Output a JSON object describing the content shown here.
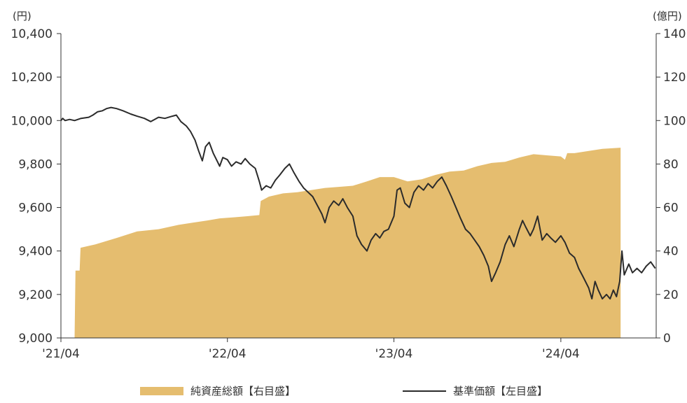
{
  "chart_data": {
    "type": "area",
    "title": "",
    "left_axis": {
      "unit_label": "(円)",
      "range": [
        9000,
        10400
      ],
      "tick_values": [
        9000,
        9200,
        9400,
        9600,
        9800,
        10000,
        10200,
        10400
      ],
      "tick_labels": [
        "9,000",
        "9,200",
        "9,400",
        "9,600",
        "9,800",
        "10,000",
        "10,200",
        "10,400"
      ]
    },
    "right_axis": {
      "unit_label": "(億円)",
      "range": [
        0,
        140
      ],
      "tick_values": [
        0,
        20,
        40,
        60,
        80,
        100,
        120,
        140
      ],
      "tick_labels": [
        "0",
        "20",
        "40",
        "60",
        "80",
        "100",
        "120",
        "140"
      ]
    },
    "x_axis": {
      "range": [
        "2021-04",
        "2024-08"
      ],
      "ticks": [
        {
          "date": "2021-04",
          "label": "'21/04"
        },
        {
          "date": "2022-04",
          "label": "'22/04"
        },
        {
          "date": "2023-04",
          "label": "'23/04"
        },
        {
          "date": "2024-04",
          "label": "'24/04"
        }
      ]
    },
    "grid": false,
    "legend_position": "bottom",
    "colors": {
      "area": "#e5bd6f",
      "line": "#2b2b2b",
      "axis": "#333333"
    },
    "series": [
      {
        "name": "純資産総額【右目盛】",
        "type": "area",
        "axis": "right",
        "points": [
          [
            "2021-04-01",
            0
          ],
          [
            "2021-05-01",
            0
          ],
          [
            "2021-05-03",
            31
          ],
          [
            "2021-05-12",
            31
          ],
          [
            "2021-05-14",
            41.5
          ],
          [
            "2021-06-15",
            43
          ],
          [
            "2021-08-01",
            46
          ],
          [
            "2021-09-15",
            49
          ],
          [
            "2021-11-01",
            50
          ],
          [
            "2021-12-15",
            52
          ],
          [
            "2022-01-15",
            53
          ],
          [
            "2022-02-15",
            54
          ],
          [
            "2022-03-15",
            55
          ],
          [
            "2022-04-15",
            55.5
          ],
          [
            "2022-05-15",
            56
          ],
          [
            "2022-06-10",
            56.5
          ],
          [
            "2022-06-13",
            63
          ],
          [
            "2022-07-01",
            65
          ],
          [
            "2022-08-01",
            66.5
          ],
          [
            "2022-09-01",
            67
          ],
          [
            "2022-10-01",
            68
          ],
          [
            "2022-11-01",
            69
          ],
          [
            "2022-12-01",
            69.5
          ],
          [
            "2023-01-01",
            70
          ],
          [
            "2023-02-01",
            72
          ],
          [
            "2023-03-01",
            74
          ],
          [
            "2023-04-01",
            74
          ],
          [
            "2023-05-01",
            72
          ],
          [
            "2023-06-01",
            73
          ],
          [
            "2023-07-01",
            75
          ],
          [
            "2023-08-01",
            76.5
          ],
          [
            "2023-09-01",
            77
          ],
          [
            "2023-10-01",
            79
          ],
          [
            "2023-11-01",
            80.5
          ],
          [
            "2023-12-01",
            81
          ],
          [
            "2024-01-01",
            83
          ],
          [
            "2024-02-01",
            84.5
          ],
          [
            "2024-03-01",
            84
          ],
          [
            "2024-04-01",
            83.5
          ],
          [
            "2024-04-10",
            82
          ],
          [
            "2024-04-15",
            85
          ],
          [
            "2024-05-01",
            85
          ],
          [
            "2024-06-01",
            86
          ],
          [
            "2024-07-01",
            87
          ],
          [
            "2024-08-10",
            87.5
          ]
        ]
      },
      {
        "name": "基準価額【左目盛】",
        "type": "line",
        "axis": "left",
        "points": [
          [
            "2021-04-01",
            10000
          ],
          [
            "2021-04-05",
            10010
          ],
          [
            "2021-04-10",
            10000
          ],
          [
            "2021-04-20",
            10005
          ],
          [
            "2021-05-01",
            10000
          ],
          [
            "2021-05-15",
            10010
          ],
          [
            "2021-06-01",
            10015
          ],
          [
            "2021-06-10",
            10025
          ],
          [
            "2021-06-20",
            10040
          ],
          [
            "2021-07-01",
            10045
          ],
          [
            "2021-07-10",
            10055
          ],
          [
            "2021-07-20",
            10060
          ],
          [
            "2021-08-01",
            10055
          ],
          [
            "2021-08-15",
            10045
          ],
          [
            "2021-09-01",
            10030
          ],
          [
            "2021-09-15",
            10020
          ],
          [
            "2021-10-01",
            10010
          ],
          [
            "2021-10-15",
            9995
          ],
          [
            "2021-11-01",
            10015
          ],
          [
            "2021-11-15",
            10010
          ],
          [
            "2021-12-01",
            10020
          ],
          [
            "2021-12-10",
            10025
          ],
          [
            "2021-12-20",
            9995
          ],
          [
            "2022-01-01",
            9975
          ],
          [
            "2022-01-10",
            9950
          ],
          [
            "2022-01-20",
            9910
          ],
          [
            "2022-01-28",
            9860
          ],
          [
            "2022-02-05",
            9815
          ],
          [
            "2022-02-12",
            9880
          ],
          [
            "2022-02-20",
            9900
          ],
          [
            "2022-03-01",
            9850
          ],
          [
            "2022-03-08",
            9820
          ],
          [
            "2022-03-15",
            9790
          ],
          [
            "2022-03-22",
            9830
          ],
          [
            "2022-04-01",
            9820
          ],
          [
            "2022-04-10",
            9790
          ],
          [
            "2022-04-20",
            9810
          ],
          [
            "2022-05-01",
            9800
          ],
          [
            "2022-05-10",
            9825
          ],
          [
            "2022-05-20",
            9800
          ],
          [
            "2022-06-01",
            9780
          ],
          [
            "2022-06-10",
            9720
          ],
          [
            "2022-06-15",
            9680
          ],
          [
            "2022-06-25",
            9700
          ],
          [
            "2022-07-05",
            9690
          ],
          [
            "2022-07-15",
            9725
          ],
          [
            "2022-07-25",
            9750
          ],
          [
            "2022-08-05",
            9780
          ],
          [
            "2022-08-15",
            9800
          ],
          [
            "2022-08-25",
            9760
          ],
          [
            "2022-09-05",
            9720
          ],
          [
            "2022-09-15",
            9690
          ],
          [
            "2022-09-25",
            9670
          ],
          [
            "2022-10-05",
            9650
          ],
          [
            "2022-10-15",
            9610
          ],
          [
            "2022-10-25",
            9570
          ],
          [
            "2022-11-01",
            9530
          ],
          [
            "2022-11-10",
            9600
          ],
          [
            "2022-11-20",
            9630
          ],
          [
            "2022-12-01",
            9610
          ],
          [
            "2022-12-10",
            9640
          ],
          [
            "2022-12-20",
            9600
          ],
          [
            "2023-01-01",
            9560
          ],
          [
            "2023-01-10",
            9470
          ],
          [
            "2023-01-20",
            9430
          ],
          [
            "2023-02-01",
            9400
          ],
          [
            "2023-02-10",
            9450
          ],
          [
            "2023-02-20",
            9480
          ],
          [
            "2023-03-01",
            9460
          ],
          [
            "2023-03-10",
            9490
          ],
          [
            "2023-03-20",
            9500
          ],
          [
            "2023-04-01",
            9560
          ],
          [
            "2023-04-08",
            9680
          ],
          [
            "2023-04-15",
            9690
          ],
          [
            "2023-04-25",
            9620
          ],
          [
            "2023-05-05",
            9600
          ],
          [
            "2023-05-15",
            9670
          ],
          [
            "2023-05-25",
            9700
          ],
          [
            "2023-06-05",
            9680
          ],
          [
            "2023-06-15",
            9710
          ],
          [
            "2023-06-25",
            9690
          ],
          [
            "2023-07-05",
            9720
          ],
          [
            "2023-07-15",
            9740
          ],
          [
            "2023-07-25",
            9700
          ],
          [
            "2023-08-05",
            9650
          ],
          [
            "2023-08-15",
            9600
          ],
          [
            "2023-08-25",
            9550
          ],
          [
            "2023-09-05",
            9500
          ],
          [
            "2023-09-15",
            9480
          ],
          [
            "2023-09-25",
            9450
          ],
          [
            "2023-10-05",
            9420
          ],
          [
            "2023-10-15",
            9380
          ],
          [
            "2023-10-25",
            9330
          ],
          [
            "2023-11-01",
            9260
          ],
          [
            "2023-11-10",
            9300
          ],
          [
            "2023-11-20",
            9350
          ],
          [
            "2023-12-01",
            9430
          ],
          [
            "2023-12-10",
            9470
          ],
          [
            "2023-12-20",
            9420
          ],
          [
            "2024-01-01",
            9500
          ],
          [
            "2024-01-08",
            9540
          ],
          [
            "2024-01-15",
            9510
          ],
          [
            "2024-01-25",
            9470
          ],
          [
            "2024-02-01",
            9500
          ],
          [
            "2024-02-10",
            9560
          ],
          [
            "2024-02-20",
            9450
          ],
          [
            "2024-03-01",
            9480
          ],
          [
            "2024-03-10",
            9460
          ],
          [
            "2024-03-20",
            9440
          ],
          [
            "2024-04-01",
            9470
          ],
          [
            "2024-04-10",
            9440
          ],
          [
            "2024-04-20",
            9390
          ],
          [
            "2024-05-01",
            9370
          ],
          [
            "2024-05-10",
            9320
          ],
          [
            "2024-05-20",
            9280
          ],
          [
            "2024-06-01",
            9230
          ],
          [
            "2024-06-08",
            9180
          ],
          [
            "2024-06-15",
            9260
          ],
          [
            "2024-06-22",
            9220
          ],
          [
            "2024-07-01",
            9180
          ],
          [
            "2024-07-10",
            9200
          ],
          [
            "2024-07-18",
            9180
          ],
          [
            "2024-07-25",
            9220
          ],
          [
            "2024-08-01",
            9190
          ],
          [
            "2024-08-08",
            9260
          ],
          [
            "2024-08-13",
            9400
          ],
          [
            "2024-08-18",
            9290
          ],
          [
            "2024-08-28",
            9340
          ],
          [
            "2024-09-05",
            9300
          ],
          [
            "2024-09-15",
            9320
          ],
          [
            "2024-09-25",
            9300
          ],
          [
            "2024-10-05",
            9330
          ],
          [
            "2024-10-15",
            9350
          ],
          [
            "2024-10-25",
            9320
          ]
        ]
      }
    ]
  },
  "legend": {
    "area_label": "純資産総額【右目盛】",
    "line_label": "基準価額【左目盛】"
  }
}
